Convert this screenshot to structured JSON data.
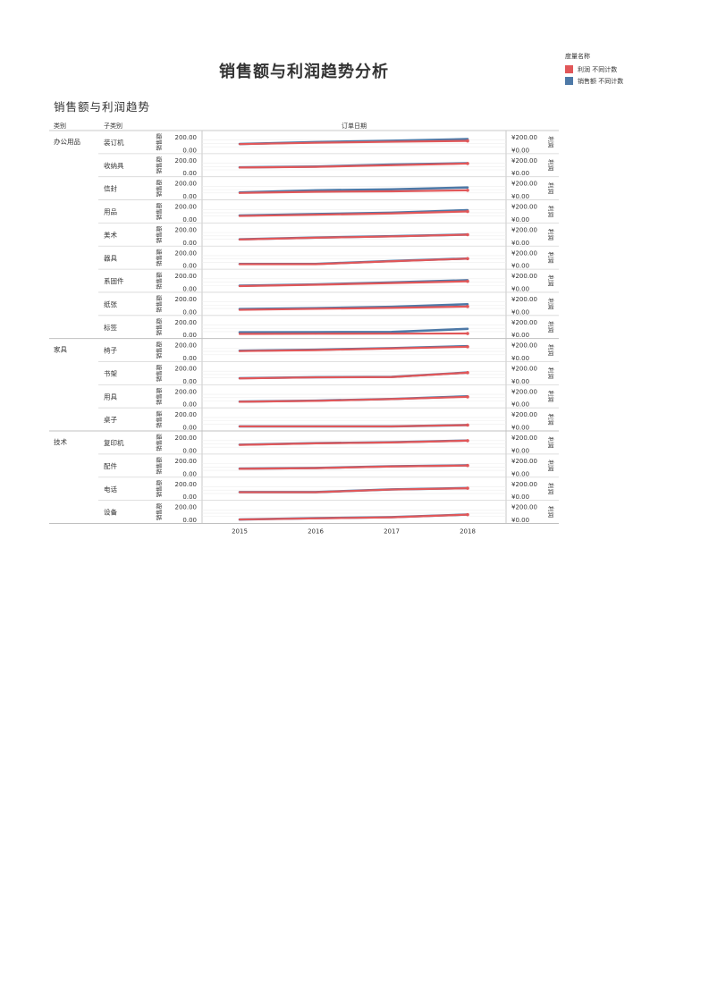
{
  "page": {
    "title": "销售额与利润趋势分析",
    "subtitle": "销售额与利润趋势"
  },
  "legend": {
    "title": "度量名称",
    "items": [
      {
        "label": "利润 不同计数",
        "color": "#e15759"
      },
      {
        "label": "销售额 不同计数",
        "color": "#4e79a7"
      }
    ]
  },
  "headers": {
    "category": "类别",
    "subcategory": "子类别",
    "date": "订单日期"
  },
  "axis_labels": {
    "left": "销售额",
    "right": "利润"
  },
  "chart_data": {
    "type": "line",
    "title": "销售额与利润趋势",
    "xlabel": "订单日期",
    "x": [
      "2015",
      "2016",
      "2017",
      "2018"
    ],
    "left_axis": {
      "label": "销售额",
      "ticks": [
        "200.00",
        "0.00"
      ],
      "ylim": [
        0,
        200
      ]
    },
    "right_axis": {
      "label": "利润",
      "ticks": [
        "¥200.00",
        "¥0.00"
      ],
      "ylim": [
        0,
        200
      ]
    },
    "series_names": [
      "利润 不同计数",
      "销售额 不同计数"
    ],
    "groups": [
      {
        "category": "办公用品",
        "rows": [
          {
            "subcategory": "装订机",
            "sales": [
              92,
              120,
              140,
              165
            ],
            "profit": [
              90,
              110,
              125,
              138
            ]
          },
          {
            "subcategory": "收纳具",
            "sales": [
              88,
              100,
              130,
              150
            ],
            "profit": [
              85,
              95,
              120,
              145
            ]
          },
          {
            "subcategory": "信封",
            "sales": [
              58,
              90,
              105,
              133
            ],
            "profit": [
              50,
              68,
              75,
              90
            ]
          },
          {
            "subcategory": "用品",
            "sales": [
              58,
              80,
              100,
              140
            ],
            "profit": [
              52,
              70,
              90,
              120
            ]
          },
          {
            "subcategory": "美术",
            "sales": [
              48,
              75,
              95,
              120
            ],
            "profit": [
              45,
              72,
              92,
              118
            ]
          },
          {
            "subcategory": "器具",
            "sales": [
              25,
              25,
              70,
              107
            ],
            "profit": [
              22,
              22,
              65,
              105
            ]
          },
          {
            "subcategory": "系固件",
            "sales": [
              45,
              65,
              95,
              128
            ],
            "profit": [
              40,
              60,
              85,
              112
            ]
          },
          {
            "subcategory": "纸张",
            "sales": [
              42,
              55,
              75,
              115
            ],
            "profit": [
              30,
              45,
              60,
              80
            ]
          },
          {
            "subcategory": "标签",
            "sales": [
              40,
              42,
              45,
              92
            ],
            "profit": [
              15,
              18,
              20,
              22
            ]
          }
        ]
      },
      {
        "category": "家具",
        "rows": [
          {
            "subcategory": "椅子",
            "sales": [
              110,
              125,
              150,
              180
            ],
            "profit": [
              105,
              120,
              145,
              170
            ]
          },
          {
            "subcategory": "书架",
            "sales": [
              45,
              60,
              65,
              130
            ],
            "profit": [
              42,
              58,
              62,
              128
            ]
          },
          {
            "subcategory": "用具",
            "sales": [
              40,
              55,
              80,
              120
            ],
            "profit": [
              38,
              52,
              78,
              112
            ]
          },
          {
            "subcategory": "桌子",
            "sales": [
              15,
              15,
              15,
              35
            ],
            "profit": [
              15,
              15,
              15,
              35
            ]
          }
        ]
      },
      {
        "category": "技术",
        "rows": [
          {
            "subcategory": "复印机",
            "sales": [
              88,
              110,
              125,
              150
            ],
            "profit": [
              85,
              108,
              122,
              148
            ]
          },
          {
            "subcategory": "配件",
            "sales": [
              75,
              85,
              110,
              125
            ],
            "profit": [
              72,
              82,
              108,
              122
            ]
          },
          {
            "subcategory": "电话",
            "sales": [
              70,
              70,
              110,
              130
            ],
            "profit": [
              68,
              68,
              108,
              128
            ]
          },
          {
            "subcategory": "设备",
            "sales": [
              5,
              25,
              40,
              80
            ],
            "profit": [
              5,
              22,
              38,
              78
            ]
          }
        ]
      }
    ]
  }
}
